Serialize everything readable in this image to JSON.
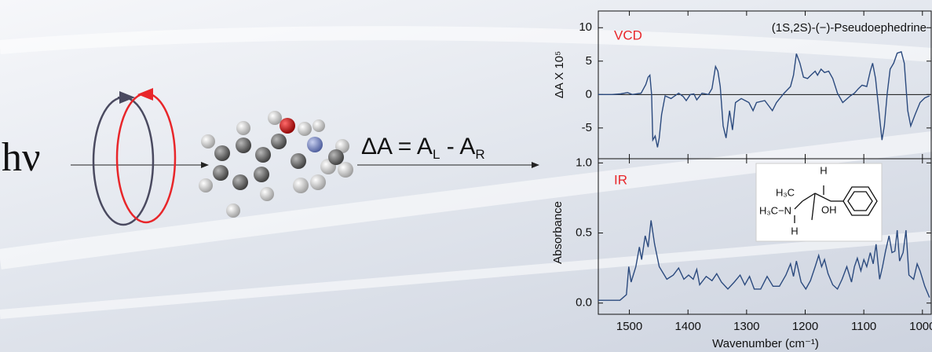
{
  "figure": {
    "photon": "hν",
    "formula": [
      "ΔA = A",
      "L",
      " - A",
      "R"
    ]
  },
  "chart_data": [
    {
      "type": "line",
      "ylabel": "ΔA X 10⁵",
      "annotations": [
        "VCD",
        "(1S,2S)-(−)-Pseudoephedrine"
      ],
      "color": "#2b4a7e",
      "zero_line": true,
      "xtick_labels": false,
      "xlim": [
        1553,
        985
      ],
      "xticks": [
        1500,
        1400,
        1300,
        1200,
        1100,
        1000
      ],
      "ylim": [
        -9.6,
        12.5
      ],
      "yticks": [
        10,
        5,
        0,
        -5
      ],
      "x": [
        1553,
        1530,
        1515,
        1503,
        1495,
        1480,
        1472,
        1468,
        1465,
        1462,
        1460,
        1456,
        1452,
        1449,
        1445,
        1439,
        1429,
        1416,
        1408,
        1403,
        1396,
        1390,
        1385,
        1376,
        1365,
        1359,
        1353,
        1349,
        1345,
        1340,
        1335,
        1329,
        1324,
        1319,
        1309,
        1296,
        1289,
        1283,
        1269,
        1256,
        1249,
        1236,
        1225,
        1220,
        1215,
        1209,
        1203,
        1196,
        1189,
        1183,
        1179,
        1173,
        1167,
        1160,
        1153,
        1145,
        1136,
        1123,
        1116,
        1109,
        1103,
        1095,
        1089,
        1085,
        1080,
        1073,
        1069,
        1065,
        1060,
        1055,
        1049,
        1043,
        1036,
        1031,
        1025,
        1020,
        1012,
        1004,
        996,
        988
      ],
      "values": [
        0,
        0,
        0.1,
        0.3,
        0,
        0.2,
        1.5,
        2.6,
        2.9,
        0,
        -6.8,
        -6.2,
        -7.9,
        -6.5,
        -3,
        -0.2,
        -0.6,
        0.2,
        -0.3,
        -0.9,
        0,
        0.1,
        -0.8,
        0.2,
        0,
        0.9,
        4.2,
        3.5,
        1.2,
        -4.7,
        -6.5,
        -2.4,
        -5.3,
        -1.2,
        -0.6,
        -1.2,
        -2.4,
        -1.2,
        -0.9,
        -2.4,
        -1.2,
        0.2,
        1.2,
        2.9,
        6.1,
        4.7,
        2.6,
        2.4,
        3,
        3.5,
        2.9,
        3.8,
        3.3,
        3.5,
        2.4,
        0.2,
        -1.2,
        -0.2,
        0.2,
        0.9,
        1.4,
        1.2,
        3.5,
        4.7,
        2.4,
        -3.5,
        -6.8,
        -4.7,
        0.2,
        3.8,
        4.7,
        6.2,
        6.4,
        4.7,
        -2.4,
        -4.7,
        -2.9,
        -1.2,
        -0.5,
        -0.2
      ]
    },
    {
      "type": "line",
      "ylabel": "Absorbance",
      "xlabel": "Wavenumber (cm⁻¹)",
      "annotations": [
        "IR"
      ],
      "inset_labels": [
        "H",
        "H₃C",
        "H₃C−N",
        "OH",
        "H"
      ],
      "color": "#2b4a7e",
      "xtick_labels": true,
      "xlim": [
        1553,
        985
      ],
      "xticks": [
        1500,
        1400,
        1300,
        1200,
        1100,
        1000
      ],
      "ylim": [
        -0.08,
        1.03
      ],
      "yticks": [
        {
          "value": 1,
          "label": "1.0"
        },
        0.5,
        {
          "value": 0,
          "label": "0.0"
        }
      ],
      "x": [
        1553,
        1516,
        1505,
        1501,
        1497,
        1489,
        1483,
        1479,
        1473,
        1468,
        1463,
        1457,
        1449,
        1436,
        1425,
        1416,
        1407,
        1399,
        1391,
        1385,
        1380,
        1369,
        1359,
        1351,
        1343,
        1332,
        1321,
        1311,
        1303,
        1295,
        1287,
        1276,
        1265,
        1255,
        1244,
        1233,
        1225,
        1220,
        1215,
        1207,
        1199,
        1191,
        1183,
        1177,
        1172,
        1167,
        1161,
        1153,
        1145,
        1137,
        1129,
        1121,
        1116,
        1111,
        1105,
        1100,
        1095,
        1089,
        1084,
        1079,
        1073,
        1068,
        1063,
        1057,
        1052,
        1047,
        1043,
        1039,
        1033,
        1028,
        1023,
        1015,
        1009,
        1004,
        996,
        988
      ],
      "values": [
        0.02,
        0.02,
        0.06,
        0.26,
        0.15,
        0.26,
        0.4,
        0.31,
        0.48,
        0.4,
        0.59,
        0.42,
        0.26,
        0.17,
        0.2,
        0.25,
        0.17,
        0.2,
        0.17,
        0.24,
        0.13,
        0.19,
        0.16,
        0.21,
        0.15,
        0.1,
        0.15,
        0.2,
        0.13,
        0.19,
        0.1,
        0.1,
        0.19,
        0.12,
        0.12,
        0.2,
        0.28,
        0.19,
        0.3,
        0.15,
        0.1,
        0.16,
        0.26,
        0.34,
        0.26,
        0.31,
        0.21,
        0.13,
        0.1,
        0.17,
        0.26,
        0.15,
        0.26,
        0.32,
        0.23,
        0.31,
        0.26,
        0.36,
        0.28,
        0.42,
        0.17,
        0.26,
        0.37,
        0.48,
        0.36,
        0.37,
        0.52,
        0.3,
        0.36,
        0.52,
        0.2,
        0.17,
        0.28,
        0.23,
        0.12,
        0.04
      ]
    }
  ]
}
